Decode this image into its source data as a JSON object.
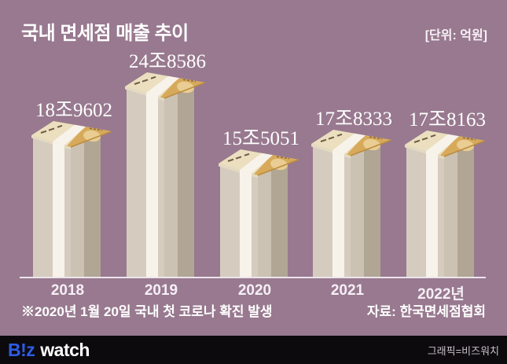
{
  "header": {
    "title": "국내 면세점 매출 추이",
    "unit": "[단위: 억원]"
  },
  "chart_data": {
    "type": "bar",
    "title": "국내 면세점 매출 추이",
    "unit": "억원",
    "categories": [
      "2018",
      "2019",
      "2020",
      "2021",
      "2022년"
    ],
    "values": [
      189602,
      248586,
      155051,
      178333,
      178163
    ],
    "value_labels": [
      "18조9602",
      "24조8586",
      "15조5051",
      "17조8333",
      "17조8163"
    ],
    "bar_style": "banknote-bundle-stack",
    "legend": "none",
    "grid": "off",
    "baseline_axis": true,
    "colors": {
      "background": "#98798f",
      "body_light": "#d5ccbf",
      "body_mid": "#ccc2b3",
      "body_dark": "#b1a694",
      "band": "#f8f3ea",
      "note_edge": "#e4dac2",
      "note_pale": "#ebdfbf",
      "note_gold": "#d7aa5b",
      "note_gold_light": "#e9cd92",
      "gold_edge": "#bb8c40",
      "dash": "#6e5c45",
      "dash_gold": "#8a6a33",
      "axis": "#ece5ec",
      "value_text": "#ffffff"
    }
  },
  "footnote": "※2020년 1월 20일 국내 첫 코로나 확진 발생",
  "source": "자료: 한국면세점협회",
  "footer": {
    "logo_biz": "B!z",
    "logo_watch": "watch",
    "credit": "그래픽=비즈워치"
  }
}
